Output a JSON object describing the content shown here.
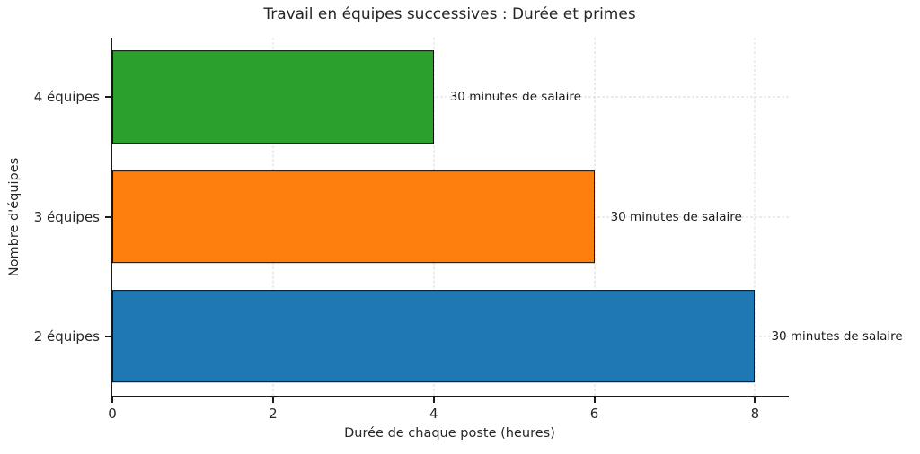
{
  "figure": {
    "title": "Travail en équipes successives : Durée et primes",
    "xlabel": "Durée de chaque poste (heures)",
    "ylabel": "Nombre d'équipes"
  },
  "chart_data": {
    "type": "bar",
    "orientation": "horizontal",
    "title": "Travail en équipes successives : Durée et primes",
    "xlabel": "Durée de chaque poste (heures)",
    "ylabel": "Nombre d'équipes",
    "categories": [
      "4 équipes",
      "3 équipes",
      "2 équipes"
    ],
    "values": [
      4,
      6,
      8
    ],
    "annotations": [
      "30 minutes de salaire",
      "30 minutes de salaire",
      "30 minutes de salaire"
    ],
    "bar_colors": [
      "#2ca02c",
      "#ff7f0e",
      "#1f77b4"
    ],
    "bar_edge_color": "#111111",
    "xticks": [
      0,
      2,
      4,
      6,
      8
    ],
    "xlim": [
      0,
      8.42
    ],
    "grid": true,
    "grid_linestyle": "dashed",
    "grid_color": "#d9d9d9",
    "legend": false
  }
}
